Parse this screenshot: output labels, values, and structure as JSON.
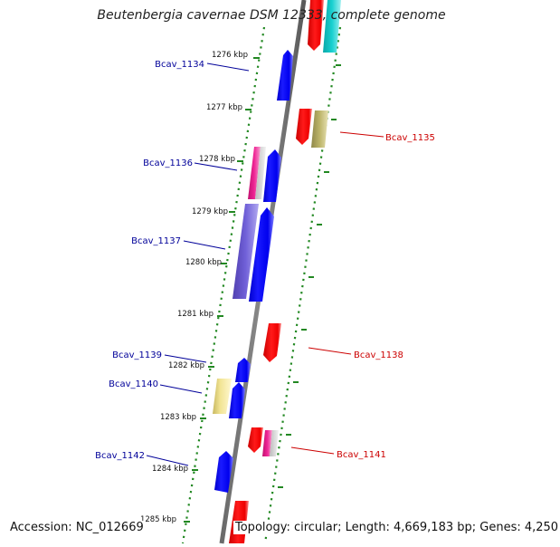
{
  "header": {
    "title": "Beutenbergia cavernae DSM 12333, complete genome"
  },
  "footer": {
    "accession": "Accession: NC_012669",
    "summary": "Topology: circular; Length: 4,669,183 bp; Genes: 4,250"
  },
  "ticks": [
    "1276 kbp",
    "1277 kbp",
    "1278 kbp",
    "1279 kbp",
    "1280 kbp",
    "1281 kbp",
    "1282 kbp",
    "1283 kbp",
    "1284 kbp",
    "1285 kbp"
  ],
  "gene_labels": [
    {
      "id": "Bcav_1134",
      "strand": "forward"
    },
    {
      "id": "Bcav_1135",
      "strand": "reverse"
    },
    {
      "id": "Bcav_1136",
      "strand": "forward"
    },
    {
      "id": "Bcav_1137",
      "strand": "forward"
    },
    {
      "id": "Bcav_1138",
      "strand": "reverse"
    },
    {
      "id": "Bcav_1139",
      "strand": "forward"
    },
    {
      "id": "Bcav_1140",
      "strand": "forward"
    },
    {
      "id": "Bcav_1141",
      "strand": "reverse"
    },
    {
      "id": "Bcav_1142",
      "strand": "forward"
    }
  ],
  "colors": {
    "forward_gene": "#0000ee",
    "reverse_gene": "#ee0000",
    "magenta": "#e0208a",
    "purple": "#6655cc",
    "khaki": "#b0a860",
    "pale_yellow": "#eee08a",
    "cyan": "#11c4c4",
    "label_forward": "#000099",
    "label_reverse": "#cc0000",
    "backbone": "#777777",
    "tick_dots": "#228822"
  }
}
